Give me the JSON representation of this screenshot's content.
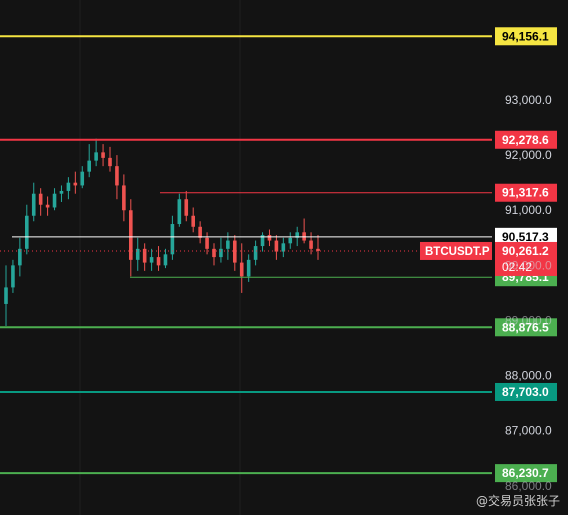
{
  "chart_data": {
    "type": "candlestick",
    "symbol": "BTCUSDT.P",
    "countdown": "02:42",
    "colors": {
      "up": "#26a69a",
      "down": "#ef5350",
      "axis_text": "#d1d4dc"
    },
    "price_ticks": [
      "93,000.0",
      "92,000.0",
      "91,000.0",
      "88,000.0",
      "87,000.0"
    ],
    "partial_ticks": [
      "90,000.0",
      "89,000.0",
      "86,000.0"
    ],
    "levels": [
      {
        "id": "l94156",
        "label": "94,156.1",
        "price": 94156.1,
        "color": "#f5e542",
        "label_text": "#000000",
        "x_start": 0
      },
      {
        "id": "l92278",
        "label": "92,278.6",
        "price": 92278.6,
        "color": "#f23645",
        "label_text": "#ffffff",
        "x_start": 0
      },
      {
        "id": "l91317",
        "label": "91,317.6",
        "price": 91317.6,
        "color": "#f23645",
        "label_text": "#ffffff",
        "x_start": 160
      },
      {
        "id": "l90517",
        "label": "90,517.3",
        "price": 90517.3,
        "color": "#ffffff",
        "label_text": "#000000",
        "x_start": 12
      },
      {
        "id": "l89785",
        "label": "89,785.1",
        "price": 89785.1,
        "color": "#4caf50",
        "label_text": "#ffffff",
        "x_start": 130
      },
      {
        "id": "l88876",
        "label": "88,876.5",
        "price": 88876.5,
        "color": "#4caf50",
        "label_text": "#ffffff",
        "x_start": 0
      },
      {
        "id": "l87703",
        "label": "87,703.0",
        "price": 87703.0,
        "color": "#089981",
        "label_text": "#ffffff",
        "x_start": 0
      },
      {
        "id": "l86230",
        "label": "86,230.7",
        "price": 86230.7,
        "color": "#4caf50",
        "label_text": "#ffffff",
        "x_start": 0
      }
    ],
    "current_price": {
      "label": "90,261.2",
      "price": 90261.2,
      "color": "#f23645"
    },
    "candles": [
      [
        89300,
        90000,
        88900,
        89600
      ],
      [
        89600,
        90100,
        89500,
        90000
      ],
      [
        90000,
        90500,
        89800,
        90300
      ],
      [
        90300,
        91100,
        90200,
        90900
      ],
      [
        90900,
        91500,
        90800,
        91300
      ],
      [
        91300,
        91400,
        90900,
        91100
      ],
      [
        91100,
        91250,
        90900,
        91050
      ],
      [
        91050,
        91400,
        91000,
        91300
      ],
      [
        91300,
        91450,
        91150,
        91350
      ],
      [
        91350,
        91600,
        91200,
        91500
      ],
      [
        91500,
        91700,
        91300,
        91450
      ],
      [
        91450,
        91800,
        91400,
        91700
      ],
      [
        91700,
        92200,
        91600,
        91900
      ],
      [
        91900,
        92300,
        91800,
        92050
      ],
      [
        92050,
        92200,
        91800,
        91950
      ],
      [
        91950,
        92150,
        91700,
        91800
      ],
      [
        91800,
        92000,
        91200,
        91450
      ],
      [
        91450,
        91650,
        90800,
        91000
      ],
      [
        91000,
        91200,
        89800,
        90100
      ],
      [
        90100,
        90500,
        89900,
        90300
      ],
      [
        90300,
        90400,
        89900,
        90050
      ],
      [
        90050,
        90300,
        89900,
        90150
      ],
      [
        90150,
        90350,
        89900,
        90000
      ],
      [
        90000,
        90300,
        89950,
        90200
      ],
      [
        90200,
        90900,
        90100,
        90750
      ],
      [
        90750,
        91300,
        90700,
        91200
      ],
      [
        91200,
        91350,
        90800,
        90900
      ],
      [
        90900,
        91050,
        90600,
        90700
      ],
      [
        90700,
        90800,
        90400,
        90500
      ],
      [
        90500,
        90600,
        90200,
        90300
      ],
      [
        90300,
        90400,
        90000,
        90150
      ],
      [
        90150,
        90500,
        90050,
        90300
      ],
      [
        90300,
        90600,
        90100,
        90450
      ],
      [
        90450,
        90550,
        89900,
        90050
      ],
      [
        90050,
        90400,
        89500,
        89800
      ],
      [
        89800,
        90200,
        89700,
        90100
      ],
      [
        90100,
        90450,
        90000,
        90350
      ],
      [
        90350,
        90600,
        90250,
        90550
      ],
      [
        90550,
        90650,
        90350,
        90450
      ],
      [
        90450,
        90550,
        90100,
        90250
      ],
      [
        90250,
        90500,
        90150,
        90400
      ],
      [
        90400,
        90600,
        90300,
        90500
      ],
      [
        90500,
        90700,
        90350,
        90600
      ],
      [
        90600,
        90850,
        90400,
        90450
      ],
      [
        90450,
        90600,
        90200,
        90300
      ],
      [
        90300,
        90550,
        90100,
        90261.2
      ]
    ]
  },
  "watermark": "@交易员张张子"
}
